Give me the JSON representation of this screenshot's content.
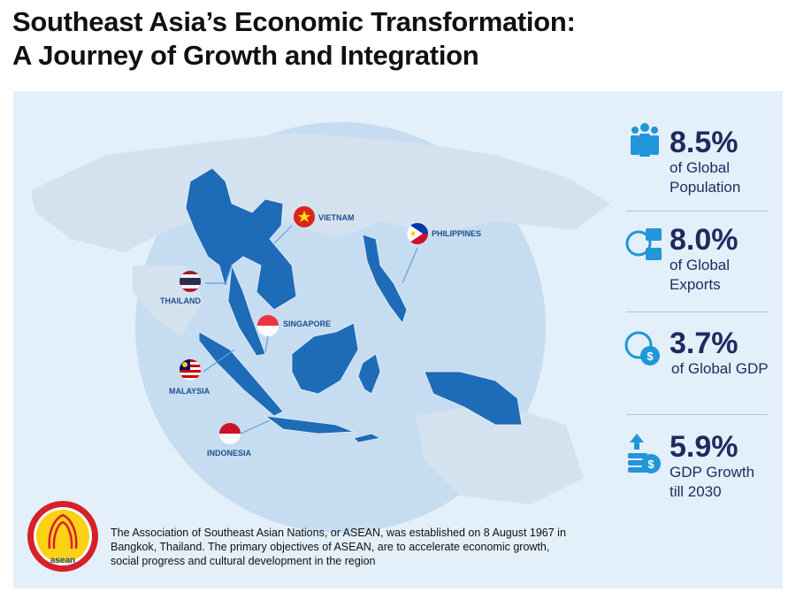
{
  "header": {
    "title_line1": "Southeast Asia’s Economic Transformation:",
    "title_line2": "A Journey of Growth and Integration"
  },
  "map": {
    "countries": [
      "VIETNAM",
      "PHILIPPINES",
      "THAILAND",
      "SINGAPORE",
      "MALAYSIA",
      "INDONESIA"
    ]
  },
  "stats": [
    {
      "value": "8.5%",
      "label": "of Global Population"
    },
    {
      "value": "8.0%",
      "label": "of Global Exports"
    },
    {
      "value": "3.7%",
      "label": "of Global GDP"
    },
    {
      "value": "5.9%",
      "label": "GDP Growth till 2030"
    }
  ],
  "footer": {
    "logo_text": "asean",
    "description": "The Association of Southeast Asian Nations, or ASEAN, was established on 8 August 1967 in Bangkok, Thailand. The primary objectives of ASEAN, are to accelerate economic growth, social progress and cultural development in the region"
  }
}
